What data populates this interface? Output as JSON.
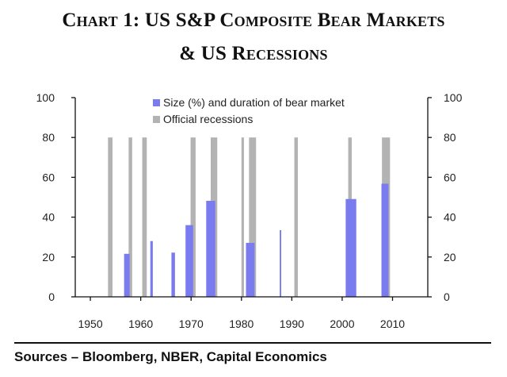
{
  "header": {
    "title_line1": "Chart 1: US S&P Composite Bear Markets",
    "title_line2": "& US Recessions"
  },
  "footer": {
    "source": "Sources – Bloomberg, NBER, Capital Economics"
  },
  "colors": {
    "bear": "#7b7bf0",
    "recession": "#b3b3b3",
    "axis": "#111111"
  },
  "chart_data": {
    "type": "bar",
    "title": "Chart 1: US S&P Composite Bear Markets & US Recessions",
    "xlim": [
      1947,
      2017
    ],
    "ylim": [
      0,
      100
    ],
    "x_ticks": [
      1950,
      1960,
      1970,
      1980,
      1990,
      2000,
      2010
    ],
    "y_ticks_left": [
      0,
      20,
      40,
      60,
      80,
      100
    ],
    "y_ticks_right": [
      0,
      20,
      40,
      60,
      80,
      100
    ],
    "legend_position": "top-center",
    "grid": false,
    "series": [
      {
        "name": "Size (%) and duration of bear market",
        "bars": [
          {
            "start": 1956.7,
            "end": 1957.8,
            "value": 21.6
          },
          {
            "start": 1961.9,
            "end": 1962.4,
            "value": 28
          },
          {
            "start": 1966.1,
            "end": 1966.8,
            "value": 22.2
          },
          {
            "start": 1968.9,
            "end": 1970.4,
            "value": 36
          },
          {
            "start": 1973.0,
            "end": 1974.8,
            "value": 48.2
          },
          {
            "start": 1980.9,
            "end": 1982.6,
            "value": 27.1
          },
          {
            "start": 1987.6,
            "end": 1987.9,
            "value": 33.5
          },
          {
            "start": 2000.7,
            "end": 2002.8,
            "value": 49.1
          },
          {
            "start": 2007.8,
            "end": 2009.2,
            "value": 56.8
          }
        ]
      },
      {
        "name": "Official recessions",
        "bars": [
          {
            "start": 1953.5,
            "end": 1954.4,
            "value": 80
          },
          {
            "start": 1957.6,
            "end": 1958.3,
            "value": 80
          },
          {
            "start": 1960.3,
            "end": 1961.2,
            "value": 80
          },
          {
            "start": 1969.9,
            "end": 1970.9,
            "value": 80
          },
          {
            "start": 1973.9,
            "end": 1975.2,
            "value": 80
          },
          {
            "start": 1980.0,
            "end": 1980.5,
            "value": 80
          },
          {
            "start": 1981.5,
            "end": 1982.9,
            "value": 80
          },
          {
            "start": 1990.5,
            "end": 1991.2,
            "value": 80
          },
          {
            "start": 2001.2,
            "end": 2001.9,
            "value": 80
          },
          {
            "start": 2007.9,
            "end": 2009.5,
            "value": 80
          }
        ]
      }
    ]
  }
}
